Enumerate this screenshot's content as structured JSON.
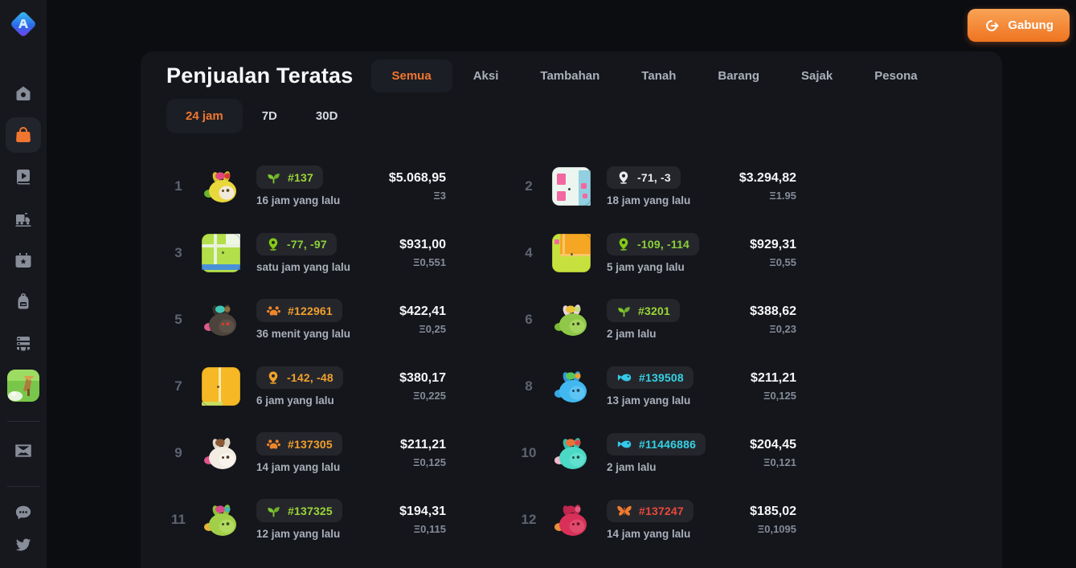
{
  "app": {
    "join_label": "Gabung"
  },
  "misc": {
    "eth_symbol": "Ξ"
  },
  "colors": {
    "accent_orange": "#f0762f",
    "badge_bg": "#25262c",
    "panel_bg": "#14161b",
    "sidebar_bg": "#17181e",
    "page_bg": "#0c0d11",
    "green": "#9bd636",
    "lime_pin": "#84cc16",
    "cyan": "#35c8e8",
    "amber": "#f0a12c",
    "red": "#e8493a",
    "white": "#e8eaee"
  },
  "sidebar": {
    "items": [
      {
        "name": "axie-logo",
        "active": false
      },
      {
        "name": "home-icon",
        "active": false
      },
      {
        "name": "marketplace-bag-icon",
        "active": true
      },
      {
        "name": "media-play-icon",
        "active": false
      },
      {
        "name": "train-icon",
        "active": false
      },
      {
        "name": "calendar-star-icon",
        "active": false
      },
      {
        "name": "backpack-icon",
        "active": false
      },
      {
        "name": "archive-icon",
        "active": false
      },
      {
        "name": "game-thumbnail",
        "active": false
      },
      {
        "name": "box-icon",
        "active": false
      },
      {
        "name": "chat-icon",
        "active": false
      },
      {
        "name": "twitter-icon",
        "active": false
      }
    ]
  },
  "header": {
    "title": "Penjualan Teratas",
    "category_tabs": [
      {
        "label": "Semua",
        "active": true
      },
      {
        "label": "Aksi",
        "active": false
      },
      {
        "label": "Tambahan",
        "active": false
      },
      {
        "label": "Tanah",
        "active": false
      },
      {
        "label": "Barang",
        "active": false
      },
      {
        "label": "Sajak",
        "active": false
      },
      {
        "label": "Pesona",
        "active": false
      }
    ],
    "time_tabs": [
      {
        "label": "24 jam",
        "active": true
      },
      {
        "label": "7D",
        "active": false
      },
      {
        "label": "30D",
        "active": false
      }
    ]
  },
  "sales": [
    {
      "rank": "1",
      "badge": {
        "icon": "plant-icon",
        "icon_color": "#7dc72e",
        "text_color": "#9bd636",
        "label": "#137"
      },
      "time": "16 jam yang lalu",
      "usd": "$5.068,95",
      "eth": "3",
      "thumb": {
        "kind": "axie",
        "body": "#e8d83c",
        "face": "#f2ead8",
        "ear": "#d8c22e",
        "eye": "#5a4a1e",
        "tail": "#6ab42e",
        "top": "#e0487c",
        "top2": "#d93b30"
      }
    },
    {
      "rank": "2",
      "badge": {
        "icon": "pin-icon",
        "icon_color": "#e8eaee",
        "text_color": "#e8eaee",
        "label": "-71, -3"
      },
      "time": "18 jam yang lalu",
      "usd": "$3.294,82",
      "eth": "1.95",
      "thumb": {
        "kind": "land",
        "bg": "#ecf6f0",
        "blocks": [
          [
            6,
            8,
            11,
            14,
            "#f268a0"
          ],
          [
            6,
            30,
            11,
            12,
            "#f268a0"
          ],
          [
            33,
            4,
            15,
            44,
            "#92cfe0"
          ],
          [
            36,
            20,
            7,
            7,
            "#f268a0"
          ],
          [
            38,
            33,
            6,
            6,
            "#f268a0"
          ],
          [
            20,
            26,
            3,
            3,
            "#3a3f48"
          ]
        ]
      }
    },
    {
      "rank": "3",
      "badge": {
        "icon": "pin-icon",
        "icon_color": "#84cc16",
        "text_color": "#8bd03a",
        "label": "-77, -97"
      },
      "time": "satu jam yang lalu",
      "usd": "$931,00",
      "eth": "0,551",
      "thumb": {
        "kind": "land",
        "bg": "#b2df4a",
        "blocks": [
          [
            30,
            0,
            18,
            13,
            "#eef6e4"
          ],
          [
            0,
            13,
            48,
            4,
            "#e8f2dc"
          ],
          [
            15,
            0,
            4,
            38,
            "#e8f2dc"
          ],
          [
            0,
            38,
            48,
            7,
            "#4a90d9"
          ],
          [
            25,
            22,
            3,
            3,
            "#55603a"
          ]
        ]
      }
    },
    {
      "rank": "4",
      "badge": {
        "icon": "pin-icon",
        "icon_color": "#84cc16",
        "text_color": "#8bd03a",
        "label": "-109, -114"
      },
      "time": "5 jam yang lalu",
      "usd": "$929,31",
      "eth": "0,55",
      "thumb": {
        "kind": "land",
        "bg": "#c6e03e",
        "blocks": [
          [
            10,
            0,
            38,
            28,
            "#f5a623"
          ],
          [
            13,
            0,
            3,
            25,
            "#f8c86a"
          ],
          [
            10,
            25,
            38,
            3,
            "#f8c86a"
          ],
          [
            3,
            7,
            6,
            6,
            "#f268a0"
          ],
          [
            23,
            24,
            3,
            3,
            "#5a6030"
          ]
        ]
      }
    },
    {
      "rank": "5",
      "badge": {
        "icon": "paw-icon",
        "icon_color": "#ed862a",
        "text_color": "#f0a02c",
        "label": "#122961"
      },
      "time": "36 menit yang lalu",
      "usd": "$422,41",
      "eth": "0,25",
      "thumb": {
        "kind": "axie",
        "body": "#4c443c",
        "face": "#5a5248",
        "ear": "#3a332c",
        "eye": "#e8392a",
        "tail": "#e05a8c",
        "top": "#3ec6b5",
        "top2": "#8a6a3a"
      }
    },
    {
      "rank": "6",
      "badge": {
        "icon": "plant-icon",
        "icon_color": "#7dc72e",
        "text_color": "#9bd636",
        "label": "#3201"
      },
      "time": "2 jam lalu",
      "usd": "$388,62",
      "eth": "0,23",
      "thumb": {
        "kind": "axie",
        "body": "#8fc848",
        "face": "#a5d45e",
        "ear": "#ecd3de",
        "eye": "#3a4a22",
        "tail": "#7ab838",
        "top": "#e8c53a",
        "top2": "#c2dc82"
      }
    },
    {
      "rank": "7",
      "badge": {
        "icon": "pin-icon",
        "icon_color": "#f0a12c",
        "text_color": "#f0a12c",
        "label": "-142, -48"
      },
      "time": "6 jam yang lalu",
      "usd": "$380,17",
      "eth": "0,225",
      "thumb": {
        "kind": "land",
        "bg": "#f6b824",
        "blocks": [
          [
            21,
            0,
            3,
            46,
            "#fbe8b0"
          ],
          [
            0,
            43,
            26,
            5,
            "#cadf62"
          ],
          [
            19,
            23,
            3,
            3,
            "#6a5a20"
          ]
        ]
      }
    },
    {
      "rank": "8",
      "badge": {
        "icon": "fish-icon",
        "icon_color": "#35c8e8",
        "text_color": "#35d2e2",
        "label": "#139508"
      },
      "time": "13 jam yang lalu",
      "usd": "$211,21",
      "eth": "0,125",
      "thumb": {
        "kind": "axie",
        "body": "#42b8f0",
        "face": "#5ec4f4",
        "ear": "#2f9ad8",
        "eye": "#1a4a66",
        "tail": "#36a8e0",
        "top": "#58c858",
        "top2": "#e8a03a"
      }
    },
    {
      "rank": "9",
      "badge": {
        "icon": "paw-icon",
        "icon_color": "#ed862a",
        "text_color": "#f0a02c",
        "label": "#137305"
      },
      "time": "14 jam yang lalu",
      "usd": "$211,21",
      "eth": "0,125",
      "thumb": {
        "kind": "axie",
        "body": "#f2ece2",
        "face": "#f8f4ec",
        "ear": "#e2d8c8",
        "eye": "#4a3a2a",
        "tail": "#e0558c",
        "top": "#8a5a38",
        "top2": "#d8d2c4"
      }
    },
    {
      "rank": "10",
      "badge": {
        "icon": "fish-icon",
        "icon_color": "#35c8e8",
        "text_color": "#35d2e2",
        "label": "#11446886"
      },
      "time": "2 jam lalu",
      "usd": "$204,45",
      "eth": "0,121",
      "thumb": {
        "kind": "axie",
        "body": "#4bd8c4",
        "face": "#62e0cf",
        "ear": "#3ab8a6",
        "eye": "#1d5248",
        "tail": "#f0bccb",
        "top": "#e8733a",
        "top2": "#d94848"
      }
    },
    {
      "rank": "11",
      "badge": {
        "icon": "plant-icon",
        "icon_color": "#7dc72e",
        "text_color": "#9bd636",
        "label": "#137325"
      },
      "time": "12 jam yang lalu",
      "usd": "$194,31",
      "eth": "0,115",
      "thumb": {
        "kind": "axie",
        "body": "#a2cf48",
        "face": "#b2d960",
        "ear": "#8cbf3a",
        "eye": "#3c4c1e",
        "tail": "#e8b53a",
        "top": "#d84a8a",
        "top2": "#42b8a8"
      }
    },
    {
      "rank": "12",
      "badge": {
        "icon": "butterfly-icon",
        "icon_color": "#f07a2e",
        "text_color": "#e8493a",
        "label": "#137247"
      },
      "time": "14 jam yang lalu",
      "usd": "$185,02",
      "eth": "0,1095",
      "thumb": {
        "kind": "axie",
        "body": "#d83058",
        "face": "#e04a6c",
        "ear": "#b8264a",
        "eye": "#6a1228",
        "tail": "#e8903a",
        "top": "#c2284e",
        "top2": "#e05a7c"
      }
    }
  ]
}
